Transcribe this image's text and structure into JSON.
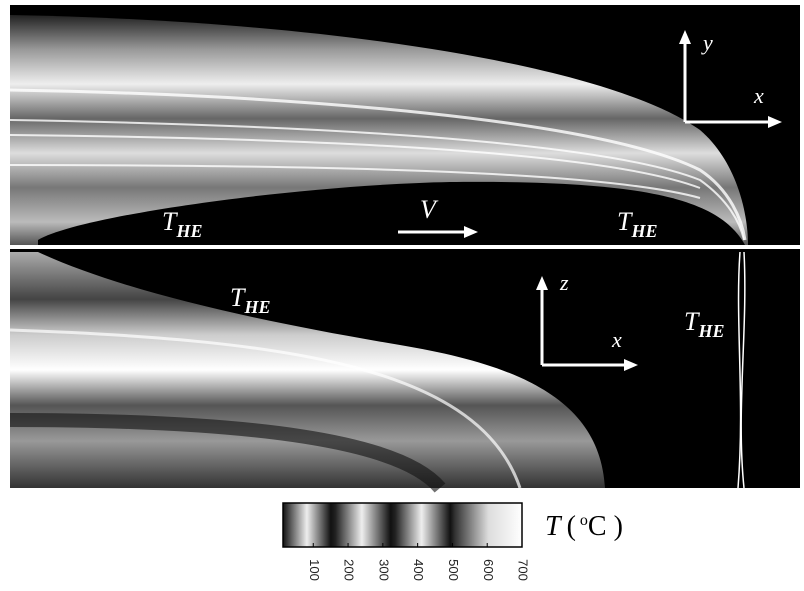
{
  "figure": {
    "annotations": [
      {
        "text": "T",
        "subscript": "HE"
      },
      {
        "text": "T",
        "subscript": "HE"
      },
      {
        "text": "T",
        "subscript": "HE"
      },
      {
        "text": "T",
        "subscript": "HE"
      }
    ],
    "velocity_label": "V",
    "top_axes": {
      "vertical": "y",
      "horizontal": "x"
    },
    "bottom_axes": {
      "vertical": "z",
      "horizontal": "x"
    },
    "colorbar": {
      "symbol": "T",
      "unit_open": "(",
      "unit_sup": "o",
      "unit": "C )",
      "lim": [
        13,
        700
      ],
      "ticks": [
        100,
        200,
        300,
        400,
        500,
        600,
        700
      ]
    }
  }
}
